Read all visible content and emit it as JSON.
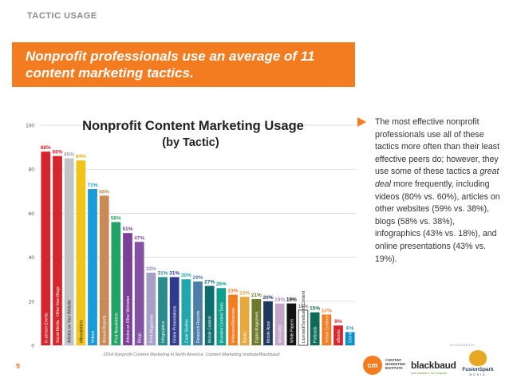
{
  "header": {
    "section_label": "TACTIC USAGE",
    "headline": "Nonprofit professionals use an average of 11 content marketing tactics."
  },
  "colors": {
    "accent_orange": "#f47c20",
    "grid": "#d0d0d0",
    "text": "#333333"
  },
  "chart_data": {
    "type": "bar",
    "title": "Nonprofit Content Marketing Usage",
    "subtitle": "(by Tactic)",
    "xlabel": "",
    "ylabel": "",
    "ylim": [
      0,
      100
    ],
    "yticks": [
      0,
      20,
      40,
      60,
      80,
      100
    ],
    "grid": true,
    "categories": [
      "In-person Events",
      "Social Media - Other than Blogs",
      "Articles on Your Website",
      "eNewsletters",
      "Videos",
      "Annual Reports",
      "Print Newsletters",
      "Articles on Other Websites",
      "Blogs",
      "Print Magazines",
      "Infographics",
      "Online Presentations",
      "Case Studies",
      "Research Reports",
      "Mobile Content",
      "Branded Content Tools",
      "Webinars/Webcasts",
      "Books",
      "Digital Magazines",
      "Mobile Apps",
      "Microsites",
      "White Papers",
      "Licensed/Syndicated Content",
      "Podcasts",
      "Virtual Conferences",
      "eBooks",
      "Games/Gamification"
    ],
    "values": [
      88,
      86,
      85,
      84,
      71,
      68,
      56,
      51,
      47,
      33,
      31,
      31,
      30,
      29,
      27,
      26,
      23,
      22,
      21,
      20,
      19,
      19,
      16,
      15,
      14,
      9,
      6
    ],
    "value_labels": [
      "88%",
      "86%",
      "85%",
      "84%",
      "71%",
      "68%",
      "56%",
      "51%",
      "47%",
      "33%",
      "31%",
      "31%",
      "30%",
      "29%",
      "27%",
      "26%",
      "23%",
      "22%",
      "21%",
      "20%",
      "19%",
      "19%",
      "16%",
      "15%",
      "14%",
      "9%",
      "6%"
    ],
    "bar_colors": [
      "#d4262c",
      "#d4262c",
      "#bfc4c6",
      "#f0c419",
      "#1a9ad7",
      "#c98a55",
      "#21a367",
      "#7b3f98",
      "#8452a3",
      "#a6a0c9",
      "#2a8c8a",
      "#303b8f",
      "#1fa7ab",
      "#4d7fa6",
      "#0f6d6d",
      "#0e9e8c",
      "#f47c20",
      "#e8a83c",
      "#6c7a2b",
      "#1e3a5f",
      "#c3a6c8",
      "#131313",
      "#ffffff",
      "#0d6b56",
      "#f47c20",
      "#d4262c",
      "#0c8ec6"
    ],
    "label_colors": [
      "#d4262c",
      "#d4262c",
      "#9aa0a3",
      "#e0b010",
      "#1a9ad7",
      "#c98a55",
      "#21a367",
      "#7b3f98",
      "#8452a3",
      "#8f88bb",
      "#2a8c8a",
      "#303b8f",
      "#1fa7ab",
      "#4d7fa6",
      "#0f6d6d",
      "#0e9e8c",
      "#f47c20",
      "#e8a83c",
      "#6c7a2b",
      "#1e3a5f",
      "#b08fb6",
      "#131313",
      "#8a8a8a",
      "#0d6b56",
      "#f47c20",
      "#d4262c",
      "#0c8ec6"
    ],
    "source": "2014 Nonprofit Content Marketing in North America: Content Marketing Institute/Blackbaud"
  },
  "sidebar": {
    "arrow_icon": "right-triangle-icon",
    "text": "The most effective nonprofit professionals use all of these tactics more often than their least effective peers do; however, they use some of these tactics a great deal more frequently, including videos (80% vs. 60%), articles on other websites (59% vs. 38%), blogs (58% vs. 38%), infographics (43% vs. 18%), and online presentations (43% vs. 19%)."
  },
  "footer": {
    "page_number": "9",
    "sponsor_label": "SPONSORED BY",
    "cmi_monogram": "cm",
    "cmi_name": "CONTENT MARKETING INSTITUTE",
    "blackbaud_name": "blackbaud",
    "blackbaud_tagline": "your passion • our purpose",
    "fusionspark_name": "FusionSpark",
    "fusionspark_sub": "MEDIA"
  }
}
